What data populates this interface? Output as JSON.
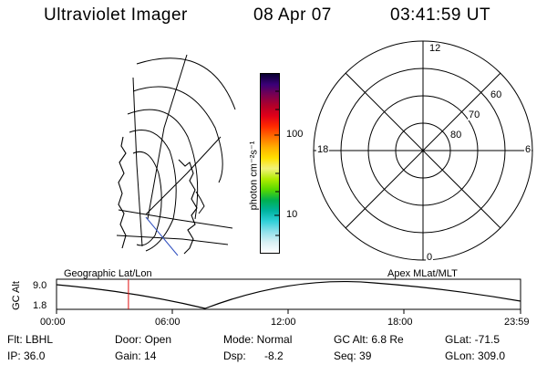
{
  "header": {
    "title": "Ultraviolet Imager",
    "date": "08 Apr 07",
    "time": "03:41:59 UT"
  },
  "colorbar": {
    "label": "photon cm⁻²s⁻¹",
    "ticks": [
      "100",
      "10"
    ],
    "colors": [
      "#ffffff",
      "#d8f0f4",
      "#8fe0ea",
      "#2fd0d8",
      "#00b4a0",
      "#00b050",
      "#58d800",
      "#b0ec00",
      "#f2f27a",
      "#ffe000",
      "#ffb000",
      "#ff7000",
      "#ff2a00",
      "#e00018",
      "#b0002a",
      "#7a0050",
      "#3a0078",
      "#080030"
    ]
  },
  "polar_plot": {
    "mlt_labels": [
      "12",
      "18",
      "6",
      "0"
    ],
    "lat_labels": [
      "60",
      "70",
      "80"
    ]
  },
  "geo_labels": {
    "left": "Geographic Lat/Lon",
    "right": "Apex MLat/MLT"
  },
  "altitude_panel": {
    "ylabel": "GC Alt",
    "ymax": "9.0",
    "ymin": "1.8",
    "xticks": [
      "00:00",
      "06:00",
      "12:00",
      "18:00",
      "23:59"
    ],
    "current_time_fraction": 0.155
  },
  "info": {
    "flt": "Flt: LBHL",
    "ip": "IP: 36.0",
    "door": "Door: Open",
    "gain": "Gain: 14",
    "mode": "Mode: Normal",
    "dsp_label": "Dsp:",
    "dsp_value": "-8.2",
    "gc_alt": "GC Alt: 6.8 Re",
    "seq": "Seq: 39",
    "glat": "GLat: -71.5",
    "glon": "GLon: 309.0"
  }
}
